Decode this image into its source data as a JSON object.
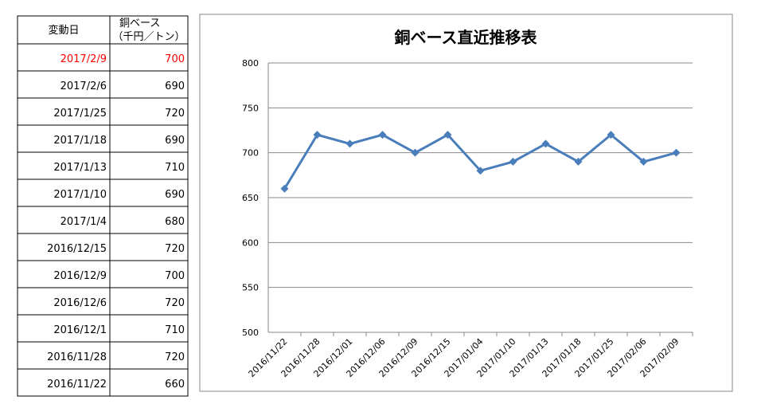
{
  "table": {
    "header": {
      "date": "変動日",
      "price": [
        "銅ベース",
        "（千円／トン）"
      ]
    },
    "rows": [
      [
        "2017/2/9",
        700
      ],
      [
        "2017/2/6",
        690
      ],
      [
        "2017/1/25",
        720
      ],
      [
        "2017/1/18",
        690
      ],
      [
        "2017/1/13",
        710
      ],
      [
        "2017/1/10",
        690
      ],
      [
        "2017/1/4",
        680
      ],
      [
        "2016/12/15",
        720
      ],
      [
        "2016/12/9",
        700
      ],
      [
        "2016/12/6",
        720
      ],
      [
        "2016/12/1",
        710
      ],
      [
        "2016/11/28",
        720
      ],
      [
        "2016/11/22",
        660
      ]
    ],
    "highlight_color": "#ff0000"
  },
  "chart_data": {
    "type": "line",
    "title": "銅ベース直近推移表",
    "categories": [
      "2016/11/22",
      "2016/11/28",
      "2016/12/01",
      "2016/12/06",
      "2016/12/09",
      "2016/12/15",
      "2017/01/04",
      "2017/01/10",
      "2017/01/13",
      "2017/01/18",
      "2017/01/25",
      "2017/02/06",
      "2017/02/09"
    ],
    "values": [
      660,
      720,
      710,
      720,
      700,
      720,
      680,
      690,
      710,
      690,
      720,
      690,
      700
    ],
    "color": "#4a7ebb",
    "ylim": [
      500,
      800
    ],
    "yticks": [
      500,
      550,
      600,
      650,
      700,
      750,
      800
    ],
    "grid": true
  }
}
